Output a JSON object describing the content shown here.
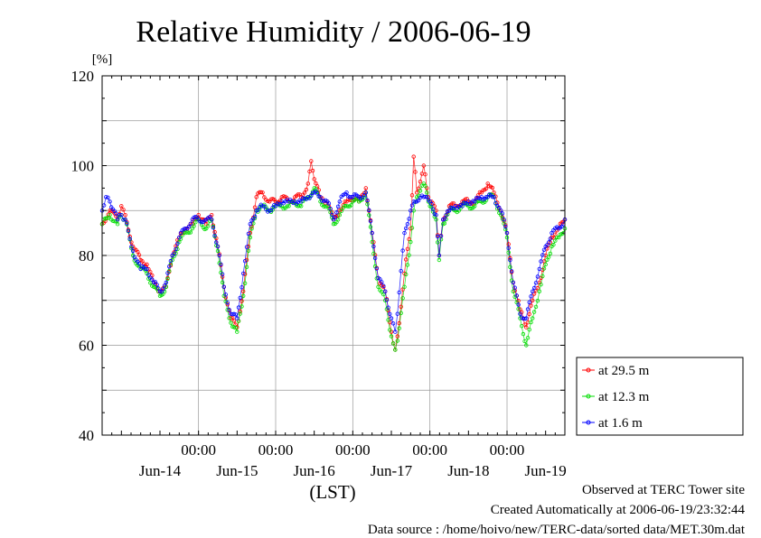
{
  "title": "Relative Humidity / 2006-06-19",
  "footer": {
    "line1": "Observed at TERC Tower site",
    "line2": "Created Automatically at 2006-06-19/23:32:44",
    "line3": "Data source : /home/hoivo/new/TERC-data/sorted  data/MET.30m.dat"
  },
  "chart_data": {
    "type": "line",
    "title": "Relative Humidity / 2006-06-19",
    "ylabel": "[%]",
    "xlabel": "(LST)",
    "ylim": [
      40,
      120
    ],
    "yticks": [
      40,
      60,
      80,
      100,
      120
    ],
    "xlim": [
      -0.25,
      5.75
    ],
    "x_unit": "days after 2006-06-14 00:00",
    "xtick_labels": [
      {
        "x": 1,
        "label": "00:00"
      },
      {
        "x": 2,
        "label": "00:00"
      },
      {
        "x": 3,
        "label": "00:00"
      },
      {
        "x": 4,
        "label": "00:00"
      },
      {
        "x": 5,
        "label": "00:00"
      }
    ],
    "date_labels": [
      {
        "x": 0.5,
        "label": "Jun-14"
      },
      {
        "x": 1.5,
        "label": "Jun-15"
      },
      {
        "x": 2.5,
        "label": "Jun-16"
      },
      {
        "x": 3.5,
        "label": "Jun-17"
      },
      {
        "x": 4.5,
        "label": "Jun-18"
      },
      {
        "x": 5.5,
        "label": "Jun-19"
      }
    ],
    "grid": true,
    "legend_position": "right-bottom",
    "series": [
      {
        "name": "at 29.5 m",
        "color": "#ff0000",
        "points": [
          [
            -0.25,
            87
          ],
          [
            -0.15,
            90
          ],
          [
            -0.05,
            88
          ],
          [
            0.0,
            91
          ],
          [
            0.05,
            89
          ],
          [
            0.15,
            82
          ],
          [
            0.25,
            79
          ],
          [
            0.33,
            78
          ],
          [
            0.42,
            74
          ],
          [
            0.5,
            72
          ],
          [
            0.58,
            73
          ],
          [
            0.66,
            80
          ],
          [
            0.75,
            84
          ],
          [
            0.83,
            86
          ],
          [
            0.92,
            87
          ],
          [
            1.0,
            89
          ],
          [
            1.1,
            87
          ],
          [
            1.17,
            89
          ],
          [
            1.25,
            82
          ],
          [
            1.33,
            73
          ],
          [
            1.42,
            66
          ],
          [
            1.5,
            64
          ],
          [
            1.58,
            72
          ],
          [
            1.67,
            85
          ],
          [
            1.75,
            93
          ],
          [
            1.83,
            94
          ],
          [
            1.92,
            92
          ],
          [
            2.0,
            92
          ],
          [
            2.08,
            93
          ],
          [
            2.17,
            92
          ],
          [
            2.25,
            93
          ],
          [
            2.33,
            93
          ],
          [
            2.42,
            96
          ],
          [
            2.46,
            101
          ],
          [
            2.5,
            97
          ],
          [
            2.58,
            93
          ],
          [
            2.67,
            92
          ],
          [
            2.75,
            88
          ],
          [
            2.83,
            90
          ],
          [
            2.92,
            92
          ],
          [
            3.0,
            93
          ],
          [
            3.08,
            92
          ],
          [
            3.17,
            95
          ],
          [
            3.25,
            85
          ],
          [
            3.33,
            75
          ],
          [
            3.42,
            72
          ],
          [
            3.5,
            63
          ],
          [
            3.55,
            59
          ],
          [
            3.58,
            62
          ],
          [
            3.67,
            76
          ],
          [
            3.75,
            86
          ],
          [
            3.79,
            102
          ],
          [
            3.83,
            94
          ],
          [
            3.92,
            100
          ],
          [
            3.96,
            95
          ],
          [
            4.0,
            92
          ],
          [
            4.08,
            90
          ],
          [
            4.12,
            80
          ],
          [
            4.17,
            88
          ],
          [
            4.25,
            91
          ],
          [
            4.33,
            91
          ],
          [
            4.42,
            92
          ],
          [
            4.5,
            92
          ],
          [
            4.58,
            92
          ],
          [
            4.67,
            94
          ],
          [
            4.75,
            96
          ],
          [
            4.83,
            94
          ],
          [
            4.92,
            90
          ],
          [
            5.0,
            85
          ],
          [
            5.08,
            74
          ],
          [
            5.17,
            68
          ],
          [
            5.25,
            64
          ],
          [
            5.33,
            70
          ],
          [
            5.42,
            74
          ],
          [
            5.5,
            80
          ],
          [
            5.58,
            84
          ],
          [
            5.67,
            86
          ],
          [
            5.75,
            88
          ]
        ]
      },
      {
        "name": "at 12.3 m",
        "color": "#00dd00",
        "points": [
          [
            -0.25,
            87
          ],
          [
            -0.15,
            89
          ],
          [
            -0.05,
            87
          ],
          [
            0.0,
            89
          ],
          [
            0.05,
            88
          ],
          [
            0.15,
            80
          ],
          [
            0.25,
            77
          ],
          [
            0.33,
            76
          ],
          [
            0.42,
            73
          ],
          [
            0.5,
            71
          ],
          [
            0.58,
            73
          ],
          [
            0.66,
            79
          ],
          [
            0.75,
            83
          ],
          [
            0.83,
            85
          ],
          [
            0.92,
            86
          ],
          [
            1.0,
            88
          ],
          [
            1.1,
            86
          ],
          [
            1.17,
            88
          ],
          [
            1.25,
            81
          ],
          [
            1.33,
            71
          ],
          [
            1.42,
            65
          ],
          [
            1.5,
            63
          ],
          [
            1.58,
            71
          ],
          [
            1.67,
            84
          ],
          [
            1.75,
            90
          ],
          [
            1.83,
            91
          ],
          [
            1.92,
            90
          ],
          [
            2.0,
            91
          ],
          [
            2.08,
            91
          ],
          [
            2.17,
            91
          ],
          [
            2.25,
            92
          ],
          [
            2.33,
            91
          ],
          [
            2.42,
            93
          ],
          [
            2.5,
            95
          ],
          [
            2.58,
            92
          ],
          [
            2.67,
            91
          ],
          [
            2.75,
            87
          ],
          [
            2.83,
            89
          ],
          [
            2.92,
            91
          ],
          [
            3.0,
            92
          ],
          [
            3.08,
            92
          ],
          [
            3.17,
            94
          ],
          [
            3.25,
            83
          ],
          [
            3.33,
            73
          ],
          [
            3.42,
            70
          ],
          [
            3.5,
            62
          ],
          [
            3.55,
            59
          ],
          [
            3.58,
            61
          ],
          [
            3.67,
            73
          ],
          [
            3.75,
            83
          ],
          [
            3.79,
            90
          ],
          [
            3.83,
            93
          ],
          [
            3.92,
            96
          ],
          [
            3.96,
            94
          ],
          [
            4.0,
            91
          ],
          [
            4.08,
            88
          ],
          [
            4.12,
            79
          ],
          [
            4.17,
            87
          ],
          [
            4.25,
            90
          ],
          [
            4.33,
            90
          ],
          [
            4.42,
            91
          ],
          [
            4.5,
            91
          ],
          [
            4.58,
            91
          ],
          [
            4.67,
            92
          ],
          [
            4.75,
            93
          ],
          [
            4.83,
            93
          ],
          [
            4.92,
            89
          ],
          [
            5.0,
            84
          ],
          [
            5.08,
            72
          ],
          [
            5.17,
            66
          ],
          [
            5.25,
            60
          ],
          [
            5.33,
            66
          ],
          [
            5.42,
            72
          ],
          [
            5.5,
            78
          ],
          [
            5.58,
            82
          ],
          [
            5.67,
            84
          ],
          [
            5.75,
            86
          ]
        ]
      },
      {
        "name": "at 1.6 m",
        "color": "#0000ff",
        "points": [
          [
            -0.25,
            90
          ],
          [
            -0.2,
            93
          ],
          [
            -0.15,
            92
          ],
          [
            -0.05,
            88
          ],
          [
            0.0,
            89
          ],
          [
            0.05,
            88
          ],
          [
            0.15,
            81
          ],
          [
            0.25,
            77
          ],
          [
            0.33,
            77
          ],
          [
            0.42,
            74
          ],
          [
            0.5,
            72
          ],
          [
            0.58,
            74
          ],
          [
            0.66,
            80
          ],
          [
            0.75,
            84
          ],
          [
            0.83,
            86
          ],
          [
            0.92,
            88
          ],
          [
            1.0,
            88
          ],
          [
            1.1,
            88
          ],
          [
            1.17,
            88
          ],
          [
            1.25,
            82
          ],
          [
            1.33,
            73
          ],
          [
            1.42,
            67
          ],
          [
            1.5,
            66
          ],
          [
            1.58,
            76
          ],
          [
            1.67,
            87
          ],
          [
            1.75,
            90
          ],
          [
            1.83,
            91
          ],
          [
            1.92,
            90
          ],
          [
            2.0,
            91
          ],
          [
            2.08,
            92
          ],
          [
            2.17,
            92
          ],
          [
            2.25,
            92
          ],
          [
            2.33,
            92
          ],
          [
            2.42,
            93
          ],
          [
            2.5,
            94
          ],
          [
            2.58,
            93
          ],
          [
            2.67,
            92
          ],
          [
            2.75,
            88
          ],
          [
            2.83,
            92
          ],
          [
            2.92,
            94
          ],
          [
            3.0,
            93
          ],
          [
            3.08,
            93
          ],
          [
            3.17,
            94
          ],
          [
            3.25,
            85
          ],
          [
            3.33,
            75
          ],
          [
            3.42,
            72
          ],
          [
            3.5,
            66
          ],
          [
            3.55,
            63
          ],
          [
            3.58,
            67
          ],
          [
            3.67,
            85
          ],
          [
            3.75,
            90
          ],
          [
            3.79,
            92
          ],
          [
            3.83,
            92
          ],
          [
            3.92,
            93
          ],
          [
            3.96,
            93
          ],
          [
            4.0,
            92
          ],
          [
            4.08,
            89
          ],
          [
            4.12,
            80
          ],
          [
            4.17,
            88
          ],
          [
            4.25,
            90
          ],
          [
            4.33,
            91
          ],
          [
            4.42,
            91
          ],
          [
            4.5,
            92
          ],
          [
            4.58,
            92
          ],
          [
            4.67,
            93
          ],
          [
            4.75,
            93
          ],
          [
            4.83,
            93
          ],
          [
            4.92,
            90
          ],
          [
            5.0,
            85
          ],
          [
            5.08,
            74
          ],
          [
            5.17,
            67
          ],
          [
            5.25,
            66
          ],
          [
            5.33,
            72
          ],
          [
            5.42,
            77
          ],
          [
            5.5,
            82
          ],
          [
            5.58,
            85
          ],
          [
            5.67,
            86
          ],
          [
            5.75,
            88
          ]
        ]
      }
    ]
  }
}
